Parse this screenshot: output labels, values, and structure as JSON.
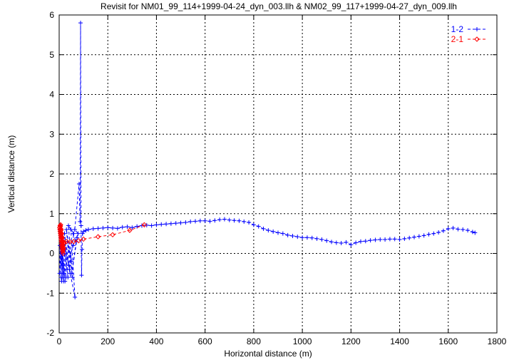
{
  "chart_data": {
    "type": "line",
    "title": "Revisit for NM01_99_114+1999-04-24_dyn_003.llh & NM02_99_117+1999-04-27_dyn_009.llh",
    "xlabel": "Horizontal distance (m)",
    "ylabel": "Vertical distance (m)",
    "xlim": [
      0,
      1800
    ],
    "ylim": [
      -2,
      6
    ],
    "xticks": [
      "0",
      "200",
      "400",
      "600",
      "800",
      "1000",
      "1200",
      "1400",
      "1600",
      "1800"
    ],
    "yticks": [
      "-2",
      "-1",
      "0",
      "1",
      "2",
      "3",
      "4",
      "5",
      "6"
    ],
    "grid": true,
    "legend_position": "top-right",
    "series": [
      {
        "name": "1-2",
        "color": "#0000ff",
        "marker": "plus",
        "line": "dashed",
        "x": [
          2,
          5,
          8,
          3,
          10,
          6,
          12,
          4,
          15,
          9,
          18,
          7,
          20,
          11,
          24,
          14,
          28,
          16,
          32,
          19,
          36,
          22,
          40,
          26,
          45,
          30,
          50,
          34,
          55,
          38,
          60,
          42,
          65,
          48,
          70,
          52,
          74,
          58,
          78,
          64,
          82,
          86,
          88,
          90,
          92,
          94,
          96,
          100,
          110,
          120,
          140,
          160,
          180,
          200,
          220,
          240,
          260,
          280,
          300,
          320,
          340,
          360,
          380,
          400,
          420,
          440,
          460,
          480,
          500,
          520,
          540,
          560,
          580,
          600,
          620,
          640,
          660,
          680,
          700,
          720,
          740,
          760,
          780,
          800,
          820,
          840,
          860,
          880,
          900,
          920,
          940,
          960,
          980,
          1000,
          1020,
          1040,
          1060,
          1080,
          1100,
          1120,
          1140,
          1160,
          1180,
          1200,
          1220,
          1240,
          1260,
          1280,
          1300,
          1320,
          1340,
          1360,
          1380,
          1400,
          1420,
          1440,
          1460,
          1480,
          1500,
          1520,
          1540,
          1560,
          1580,
          1600,
          1620,
          1640,
          1660,
          1680,
          1700,
          1710
        ],
        "y": [
          -0.5,
          0.6,
          -0.6,
          0.2,
          -0.7,
          0.4,
          -0.3,
          0.7,
          -0.6,
          0.1,
          -0.7,
          0.5,
          -0.5,
          0.3,
          -0.7,
          0.0,
          -0.6,
          0.4,
          -0.4,
          0.2,
          -0.6,
          0.5,
          -0.3,
          0.1,
          -0.5,
          0.6,
          -0.2,
          0.3,
          -0.6,
          0.7,
          0.5,
          -0.4,
          -1.1,
          0.6,
          0.3,
          -0.5,
          0.4,
          0.2,
          0.5,
          0.6,
          1.75,
          0.8,
          5.8,
          0.7,
          -0.55,
          0.1,
          0.5,
          0.55,
          0.58,
          0.6,
          0.62,
          0.63,
          0.64,
          0.65,
          0.64,
          0.63,
          0.66,
          0.67,
          0.65,
          0.68,
          0.7,
          0.71,
          0.7,
          0.72,
          0.73,
          0.74,
          0.75,
          0.76,
          0.77,
          0.78,
          0.8,
          0.81,
          0.82,
          0.82,
          0.81,
          0.83,
          0.85,
          0.86,
          0.84,
          0.83,
          0.82,
          0.8,
          0.78,
          0.72,
          0.68,
          0.62,
          0.58,
          0.55,
          0.52,
          0.5,
          0.46,
          0.44,
          0.42,
          0.4,
          0.4,
          0.39,
          0.37,
          0.35,
          0.32,
          0.29,
          0.27,
          0.26,
          0.28,
          0.22,
          0.27,
          0.3,
          0.31,
          0.33,
          0.34,
          0.35,
          0.35,
          0.36,
          0.36,
          0.35,
          0.37,
          0.39,
          0.41,
          0.43,
          0.45,
          0.48,
          0.5,
          0.53,
          0.57,
          0.62,
          0.64,
          0.61,
          0.6,
          0.58,
          0.54,
          0.52
        ]
      },
      {
        "name": "2-1",
        "color": "#ff0000",
        "marker": "diamond",
        "line": "dashed",
        "x": [
          2,
          4,
          6,
          8,
          10,
          12,
          14,
          16,
          18,
          3,
          5,
          7,
          9,
          11,
          13,
          15,
          17,
          19,
          4,
          6,
          8,
          10,
          12,
          14,
          16,
          5,
          7,
          9,
          11,
          13,
          15,
          6,
          8,
          10,
          12,
          14,
          20,
          30,
          45,
          60,
          80,
          100,
          160,
          220,
          290,
          350
        ],
        "y": [
          0.65,
          0.55,
          0.45,
          0.35,
          0.25,
          0.15,
          0.05,
          0.0,
          0.1,
          0.6,
          0.5,
          0.4,
          0.3,
          0.2,
          0.1,
          0.05,
          0.15,
          0.25,
          0.7,
          0.62,
          0.52,
          0.42,
          0.32,
          0.22,
          0.12,
          0.68,
          0.58,
          0.48,
          0.38,
          0.28,
          0.18,
          0.72,
          0.6,
          0.5,
          0.4,
          0.3,
          0.28,
          0.3,
          0.29,
          0.3,
          0.32,
          0.36,
          0.42,
          0.47,
          0.58,
          0.72
        ]
      }
    ]
  }
}
